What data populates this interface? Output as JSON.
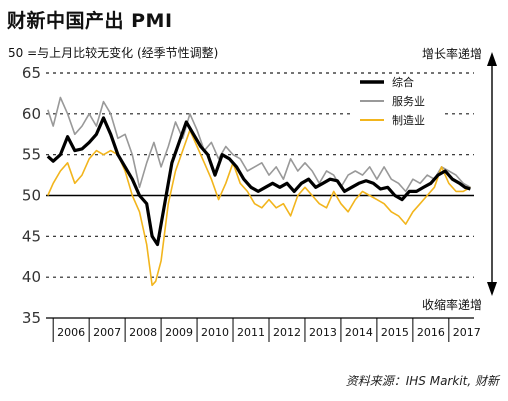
{
  "title": "财新中国产出 PMI",
  "subtitle": "50 =与上月比较无变化 (经季节性调整)",
  "up_label": "增长率递增",
  "down_label": "收缩率递增",
  "source": "资料来源：IHS Markit, 财新",
  "chart_data": {
    "type": "line",
    "ylim": [
      35,
      65
    ],
    "xlim": [
      2005.8,
      2017.7
    ],
    "yticks": [
      35,
      40,
      45,
      50,
      55,
      60,
      65
    ],
    "ytick_labels": [
      "35",
      "40",
      "45",
      "50",
      "55",
      "60",
      "65"
    ],
    "xtick_labels": [
      "2006",
      "2007",
      "2008",
      "2009",
      "2010",
      "2011",
      "2012",
      "2013",
      "2014",
      "2015",
      "2016",
      "2017"
    ],
    "reference_line": 50,
    "grid": "dashed horizontal",
    "legend_position": "top-right",
    "series": [
      {
        "name": "综合",
        "color": "#000000",
        "points": [
          [
            2005.85,
            54.8
          ],
          [
            2006.0,
            54.2
          ],
          [
            2006.2,
            55.0
          ],
          [
            2006.4,
            57.2
          ],
          [
            2006.6,
            55.5
          ],
          [
            2006.8,
            55.7
          ],
          [
            2007.0,
            56.5
          ],
          [
            2007.2,
            57.5
          ],
          [
            2007.4,
            59.5
          ],
          [
            2007.6,
            57.5
          ],
          [
            2007.8,
            55.0
          ],
          [
            2008.0,
            53.5
          ],
          [
            2008.2,
            52.0
          ],
          [
            2008.4,
            50.0
          ],
          [
            2008.6,
            49.0
          ],
          [
            2008.75,
            45.0
          ],
          [
            2008.9,
            44.0
          ],
          [
            2009.1,
            49.0
          ],
          [
            2009.3,
            54.0
          ],
          [
            2009.5,
            56.5
          ],
          [
            2009.7,
            59.0
          ],
          [
            2009.9,
            57.5
          ],
          [
            2010.1,
            56.0
          ],
          [
            2010.3,
            55.0
          ],
          [
            2010.5,
            52.5
          ],
          [
            2010.7,
            55.0
          ],
          [
            2010.9,
            54.5
          ],
          [
            2011.1,
            53.5
          ],
          [
            2011.3,
            52.0
          ],
          [
            2011.5,
            51.0
          ],
          [
            2011.7,
            50.5
          ],
          [
            2011.9,
            51.0
          ],
          [
            2012.1,
            51.5
          ],
          [
            2012.3,
            51.0
          ],
          [
            2012.5,
            51.5
          ],
          [
            2012.7,
            50.5
          ],
          [
            2012.9,
            51.5
          ],
          [
            2013.1,
            52.0
          ],
          [
            2013.3,
            51.0
          ],
          [
            2013.5,
            51.5
          ],
          [
            2013.7,
            52.0
          ],
          [
            2013.9,
            51.8
          ],
          [
            2014.1,
            50.5
          ],
          [
            2014.3,
            51.0
          ],
          [
            2014.5,
            51.5
          ],
          [
            2014.7,
            51.8
          ],
          [
            2014.9,
            51.5
          ],
          [
            2015.1,
            50.8
          ],
          [
            2015.3,
            51.0
          ],
          [
            2015.5,
            50.0
          ],
          [
            2015.7,
            49.5
          ],
          [
            2015.9,
            50.5
          ],
          [
            2016.1,
            50.5
          ],
          [
            2016.3,
            51.0
          ],
          [
            2016.5,
            51.5
          ],
          [
            2016.7,
            52.5
          ],
          [
            2016.9,
            53.0
          ],
          [
            2017.1,
            52.0
          ],
          [
            2017.3,
            51.5
          ],
          [
            2017.45,
            51.0
          ],
          [
            2017.6,
            50.8
          ]
        ]
      },
      {
        "name": "服务业",
        "color": "#999999",
        "points": [
          [
            2005.85,
            60.5
          ],
          [
            2006.0,
            58.5
          ],
          [
            2006.2,
            62.0
          ],
          [
            2006.4,
            60.0
          ],
          [
            2006.6,
            57.5
          ],
          [
            2006.8,
            58.5
          ],
          [
            2007.0,
            60.0
          ],
          [
            2007.2,
            58.5
          ],
          [
            2007.4,
            61.5
          ],
          [
            2007.6,
            60.0
          ],
          [
            2007.8,
            57.0
          ],
          [
            2008.0,
            57.5
          ],
          [
            2008.2,
            55.0
          ],
          [
            2008.4,
            51.0
          ],
          [
            2008.6,
            54.0
          ],
          [
            2008.8,
            56.5
          ],
          [
            2009.0,
            53.5
          ],
          [
            2009.2,
            56.0
          ],
          [
            2009.4,
            59.0
          ],
          [
            2009.6,
            57.0
          ],
          [
            2009.8,
            60.0
          ],
          [
            2010.0,
            58.0
          ],
          [
            2010.2,
            55.5
          ],
          [
            2010.4,
            56.5
          ],
          [
            2010.6,
            54.5
          ],
          [
            2010.8,
            56.0
          ],
          [
            2011.0,
            55.0
          ],
          [
            2011.2,
            54.5
          ],
          [
            2011.4,
            53.0
          ],
          [
            2011.6,
            53.5
          ],
          [
            2011.8,
            54.0
          ],
          [
            2012.0,
            52.5
          ],
          [
            2012.2,
            53.5
          ],
          [
            2012.4,
            52.0
          ],
          [
            2012.6,
            54.5
          ],
          [
            2012.8,
            53.0
          ],
          [
            2013.0,
            54.0
          ],
          [
            2013.2,
            53.0
          ],
          [
            2013.4,
            51.5
          ],
          [
            2013.6,
            53.0
          ],
          [
            2013.8,
            52.5
          ],
          [
            2014.0,
            51.0
          ],
          [
            2014.2,
            52.5
          ],
          [
            2014.4,
            53.0
          ],
          [
            2014.6,
            52.5
          ],
          [
            2014.8,
            53.5
          ],
          [
            2015.0,
            52.0
          ],
          [
            2015.2,
            53.5
          ],
          [
            2015.4,
            52.0
          ],
          [
            2015.6,
            51.5
          ],
          [
            2015.8,
            50.5
          ],
          [
            2016.0,
            52.0
          ],
          [
            2016.2,
            51.5
          ],
          [
            2016.4,
            52.5
          ],
          [
            2016.6,
            52.0
          ],
          [
            2016.8,
            53.5
          ],
          [
            2017.0,
            53.0
          ],
          [
            2017.2,
            52.5
          ],
          [
            2017.4,
            51.5
          ],
          [
            2017.6,
            51.0
          ]
        ]
      },
      {
        "name": "制造业",
        "color": "#f2b51d",
        "points": [
          [
            2005.85,
            50.0
          ],
          [
            2006.0,
            51.5
          ],
          [
            2006.2,
            53.0
          ],
          [
            2006.4,
            54.0
          ],
          [
            2006.6,
            51.5
          ],
          [
            2006.8,
            52.5
          ],
          [
            2007.0,
            54.5
          ],
          [
            2007.2,
            55.5
          ],
          [
            2007.4,
            55.0
          ],
          [
            2007.6,
            55.5
          ],
          [
            2007.8,
            55.0
          ],
          [
            2008.0,
            53.0
          ],
          [
            2008.2,
            50.0
          ],
          [
            2008.4,
            48.0
          ],
          [
            2008.6,
            44.0
          ],
          [
            2008.75,
            39.0
          ],
          [
            2008.85,
            39.5
          ],
          [
            2009.0,
            42.0
          ],
          [
            2009.2,
            49.0
          ],
          [
            2009.4,
            53.0
          ],
          [
            2009.6,
            55.5
          ],
          [
            2009.8,
            58.0
          ],
          [
            2010.0,
            56.0
          ],
          [
            2010.2,
            54.0
          ],
          [
            2010.4,
            52.0
          ],
          [
            2010.6,
            49.5
          ],
          [
            2010.8,
            51.5
          ],
          [
            2011.0,
            54.0
          ],
          [
            2011.2,
            51.5
          ],
          [
            2011.4,
            50.5
          ],
          [
            2011.6,
            49.0
          ],
          [
            2011.8,
            48.5
          ],
          [
            2012.0,
            49.5
          ],
          [
            2012.2,
            48.5
          ],
          [
            2012.4,
            49.0
          ],
          [
            2012.6,
            47.5
          ],
          [
            2012.8,
            50.0
          ],
          [
            2013.0,
            51.0
          ],
          [
            2013.2,
            50.0
          ],
          [
            2013.4,
            49.0
          ],
          [
            2013.6,
            48.5
          ],
          [
            2013.8,
            50.5
          ],
          [
            2014.0,
            49.0
          ],
          [
            2014.2,
            48.0
          ],
          [
            2014.4,
            49.5
          ],
          [
            2014.6,
            50.5
          ],
          [
            2014.8,
            50.0
          ],
          [
            2015.0,
            49.5
          ],
          [
            2015.2,
            49.0
          ],
          [
            2015.4,
            48.0
          ],
          [
            2015.6,
            47.5
          ],
          [
            2015.8,
            46.5
          ],
          [
            2016.0,
            48.0
          ],
          [
            2016.2,
            49.0
          ],
          [
            2016.4,
            50.0
          ],
          [
            2016.6,
            51.0
          ],
          [
            2016.8,
            53.5
          ],
          [
            2017.0,
            51.5
          ],
          [
            2017.2,
            50.5
          ],
          [
            2017.4,
            50.5
          ],
          [
            2017.6,
            51.0
          ]
        ]
      }
    ]
  }
}
